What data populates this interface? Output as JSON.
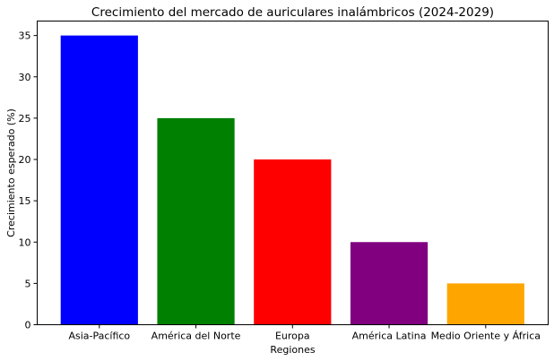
{
  "chart_data": {
    "type": "bar",
    "title": "Crecimiento del mercado de auriculares inalámbricos (2024-2029)",
    "xlabel": "Regiones",
    "ylabel": "Crecimiento esperado (%)",
    "categories": [
      "Asia-Pacífico",
      "América del Norte",
      "Europa",
      "América Latina",
      "Medio Oriente y África"
    ],
    "values": [
      35,
      25,
      20,
      10,
      5
    ],
    "colors": [
      "#0000ff",
      "#008000",
      "#ff0000",
      "#800080",
      "#ffa500"
    ],
    "ylim": [
      0,
      36.75
    ],
    "yticks": [
      "0",
      "5",
      "10",
      "15",
      "20",
      "25",
      "30",
      "35"
    ],
    "grid": false,
    "legend": "none"
  }
}
